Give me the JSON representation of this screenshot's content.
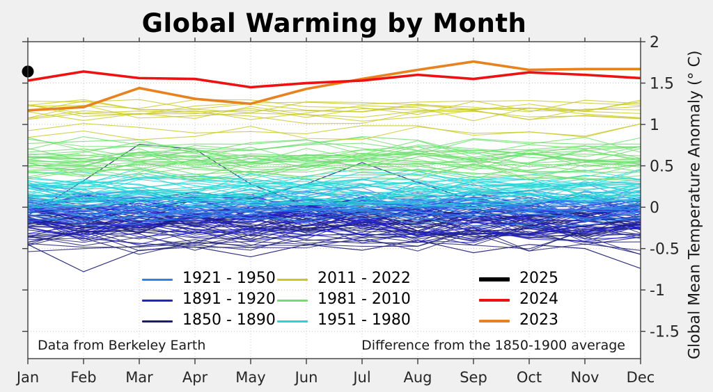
{
  "chart_data": {
    "type": "line",
    "title": "Global Warming by Month",
    "ylabel": "Global Mean Temperature Anomaly (° C)",
    "xlabel": "",
    "x_ticklabels": [
      "Jan",
      "Feb",
      "Mar",
      "Apr",
      "May",
      "Jun",
      "Jul",
      "Aug",
      "Sep",
      "Oct",
      "Nov",
      "Dec"
    ],
    "y_ticks": [
      2,
      1.5,
      1,
      0.5,
      0,
      -0.5,
      -1,
      -1.5
    ],
    "y_tick_labels": [
      "2",
      "1.5",
      "1",
      "0.5",
      "0",
      "-0.5",
      "-1",
      "-1.5"
    ],
    "ylim": [
      -1.83,
      2.0
    ],
    "grid": "dotted",
    "grid_color": "#c6c6c6",
    "plot_bg": "#ffffff",
    "figure_bg": "#f0f0f0",
    "spine_color": "#3c3c3c",
    "annotation_left": "Data from Berkeley Earth",
    "annotation_right": "Difference from the 1850-1900 average",
    "legend_position": "inside-lower-center",
    "highlight_series": [
      {
        "name": "2025",
        "color": "#000000",
        "style": "point",
        "marker_size": 8.5,
        "values": [
          1.64
        ]
      },
      {
        "name": "2024",
        "color": "#ee1111",
        "style": "line",
        "width": 3.6,
        "values": [
          1.53,
          1.64,
          1.56,
          1.55,
          1.45,
          1.5,
          1.53,
          1.6,
          1.55,
          1.63,
          1.6,
          1.56
        ]
      },
      {
        "name": "2023",
        "color": "#e8821e",
        "style": "line",
        "width": 3.6,
        "values": [
          1.17,
          1.21,
          1.44,
          1.31,
          1.25,
          1.43,
          1.55,
          1.66,
          1.76,
          1.66,
          1.67,
          1.67
        ]
      }
    ],
    "period_groups": [
      {
        "name": "1850 - 1890",
        "color": "#1a1a78",
        "years": 41,
        "center": -0.22,
        "spread": 0.2,
        "noise": 0.17,
        "min": -0.8,
        "max": 0.45,
        "notable_lines": [
          [
            -0.1,
            0.32,
            0.76,
            0.7,
            0.28,
            0.02,
            -0.12,
            -0.18,
            -0.1,
            -0.22,
            -0.15,
            -0.25
          ],
          [
            -0.45,
            -0.78,
            -0.52,
            -0.48,
            -0.6,
            -0.45,
            -0.52,
            -0.4,
            -0.55,
            -0.45,
            -0.5,
            -0.74
          ],
          [
            -0.05,
            -0.12,
            0.08,
            0.18,
            0.1,
            0.28,
            0.54,
            0.3,
            0.08,
            0.02,
            -0.08,
            -0.02
          ]
        ]
      },
      {
        "name": "1891 - 1920",
        "color": "#2121cc",
        "years": 30,
        "center": -0.12,
        "spread": 0.18,
        "noise": 0.15,
        "min": -0.7,
        "max": 0.4,
        "notable_lines": []
      },
      {
        "name": "1921 - 1950",
        "color": "#2e82e6",
        "years": 30,
        "center": 0.0,
        "spread": 0.17,
        "noise": 0.14,
        "min": -0.5,
        "max": 0.45,
        "notable_lines": []
      },
      {
        "name": "1951 - 1980",
        "color": "#25d5d5",
        "years": 30,
        "center": 0.24,
        "spread": 0.15,
        "noise": 0.12,
        "min": -0.15,
        "max": 0.6,
        "notable_lines": []
      },
      {
        "name": "1981 - 2010",
        "color": "#6ede6e",
        "years": 30,
        "center": 0.6,
        "spread": 0.2,
        "noise": 0.12,
        "min": 0.2,
        "max": 1.1,
        "notable_lines": []
      },
      {
        "name": "2011 - 2022",
        "color": "#c8c822",
        "years": 12,
        "center": 1.08,
        "spread": 0.17,
        "noise": 0.1,
        "min": 0.75,
        "max": 1.47,
        "notable_lines": []
      }
    ],
    "legend_columns": [
      [
        {
          "label": "1921 - 1950",
          "color": "#2e82e6",
          "thickness": 3
        },
        {
          "label": "1891 - 1920",
          "color": "#2121cc",
          "thickness": 3
        },
        {
          "label": "1850 - 1890",
          "color": "#1a1a78",
          "thickness": 3
        }
      ],
      [
        {
          "label": "2011 - 2022",
          "color": "#c8c822",
          "thickness": 3
        },
        {
          "label": "1981 - 2010",
          "color": "#6ede6e",
          "thickness": 3
        },
        {
          "label": "1951 - 1980",
          "color": "#25d5d5",
          "thickness": 3
        }
      ],
      [
        {
          "label": "2025",
          "color": "#000000",
          "thickness": 6
        },
        {
          "label": "2024",
          "color": "#ee1111",
          "thickness": 4
        },
        {
          "label": "2023",
          "color": "#e8821e",
          "thickness": 4
        }
      ]
    ]
  }
}
